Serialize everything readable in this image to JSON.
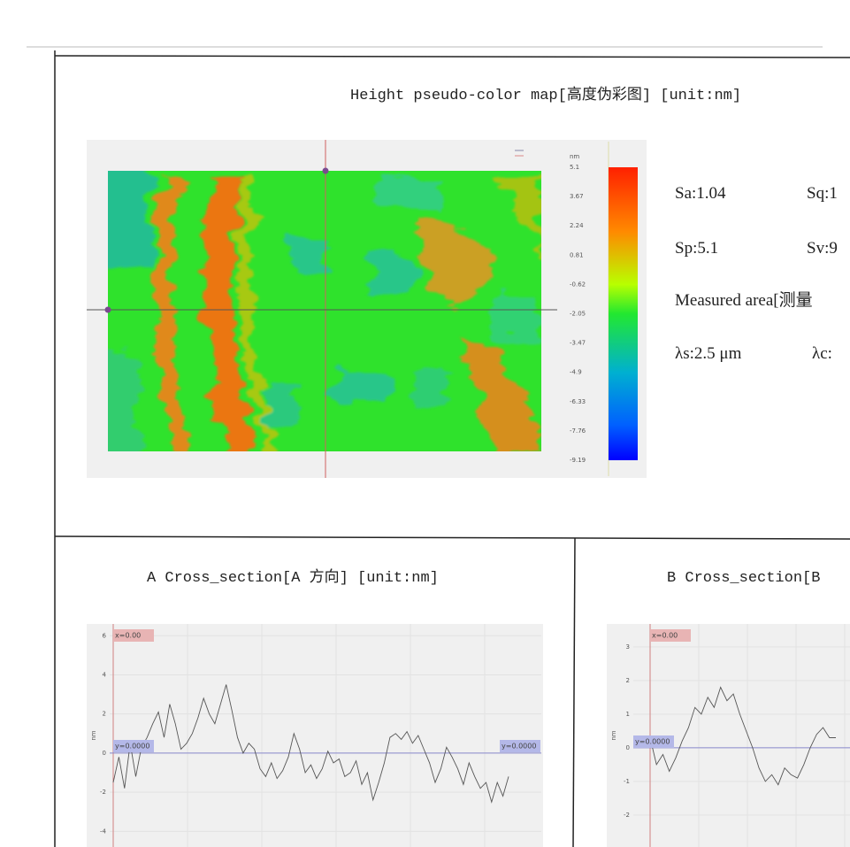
{
  "map": {
    "title": "Height pseudo-color map[高度伪彩图]  [unit:nm]",
    "unit": "nm",
    "colorbar_lim": [
      -9.19,
      5.1
    ],
    "colorbar_ticks": [
      5.1,
      3.67,
      2.24,
      0.81,
      -0.62,
      -2.05,
      -3.47,
      -4.9,
      -6.33,
      -7.76,
      -9.19
    ]
  },
  "stats": [
    [
      "Sa:1.04",
      "Sq:1"
    ],
    [
      "Sp:5.1",
      "Sv:9"
    ],
    [
      "Measured area[测量"
    ],
    [
      "λs:2.5 μm",
      "λc:"
    ]
  ],
  "chart_data": [
    {
      "type": "line",
      "title": "A Cross_section[A 方向]  [unit:nm]",
      "y_label": "nm",
      "color": "#555555",
      "ylim": [
        -4.8,
        6.6
      ],
      "yticks": [
        6,
        4,
        2,
        0,
        -2,
        -4
      ],
      "grid": true,
      "annotations": [
        "x=0.00",
        "y=0.0000",
        "y=0.0000"
      ],
      "values": [
        -1.5,
        -0.2,
        -1.8,
        0.5,
        -1.2,
        0.3,
        0.8,
        1.5,
        2.1,
        0.8,
        2.5,
        1.5,
        0.2,
        0.5,
        1.0,
        1.8,
        2.8,
        2.0,
        1.5,
        2.5,
        3.5,
        2.2,
        0.8,
        0,
        0.5,
        0.2,
        -0.8,
        -1.2,
        -0.5,
        -1.3,
        -0.9,
        -0.2,
        1.0,
        0.2,
        -1.0,
        -0.6,
        -1.3,
        -0.8,
        0.1,
        -0.5,
        -0.3,
        -1.2,
        -1.0,
        -0.4,
        -1.6,
        -1.0,
        -2.4,
        -1.5,
        -0.5,
        0.8,
        1.0,
        0.7,
        1.1,
        0.5,
        0.9,
        0.2,
        -0.5,
        -1.5,
        -0.8,
        0.3,
        -0.2,
        -0.8,
        -1.6,
        -0.5,
        -1.2,
        -1.8,
        -1.5,
        -2.5,
        -1.5,
        -2.2,
        -1.2
      ]
    },
    {
      "type": "line",
      "title": "B Cross_section[B",
      "y_label": "nm",
      "color": "#555555",
      "ylim": [
        -2.95,
        3.68
      ],
      "yticks": [
        3,
        2,
        1,
        0,
        -1,
        -2
      ],
      "grid": true,
      "annotations": [
        "x=0.00",
        "y=0.0000"
      ],
      "values": [
        0.3,
        -0.5,
        -0.2,
        -0.7,
        -0.3,
        0.2,
        0.6,
        1.2,
        1.0,
        1.5,
        1.2,
        1.8,
        1.4,
        1.6,
        1.0,
        0.5,
        0,
        -0.6,
        -1.0,
        -0.8,
        -1.1,
        -0.6,
        -0.8,
        -0.9,
        -0.5,
        0.0,
        0.4,
        0.6,
        0.3,
        0.3
      ]
    }
  ]
}
